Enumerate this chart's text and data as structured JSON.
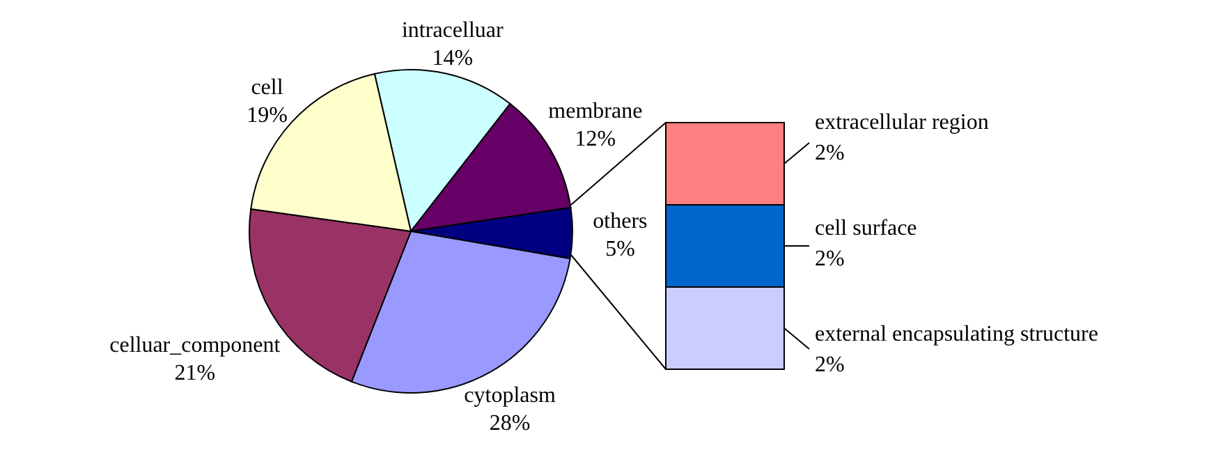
{
  "chart_data": [
    {
      "type": "pie",
      "categories": [
        "intracelluar",
        "membrane",
        "others",
        "cytoplasm",
        "celluar_component",
        "cell"
      ],
      "values": [
        14,
        12,
        5,
        28,
        21,
        19
      ],
      "value_labels": [
        "14%",
        "12%",
        "5%",
        "28%",
        "21%",
        "19%"
      ],
      "colors": [
        "#ccffff",
        "#660066",
        "#000080",
        "#9999ff",
        "#993366",
        "#ffffcc"
      ]
    },
    {
      "type": "bar",
      "stacked": true,
      "categories": [
        null
      ],
      "series": [
        {
          "name": "external encapsulating structure",
          "color": "#ccccff",
          "values": [
            2
          ],
          "value_labels": [
            "2%"
          ]
        },
        {
          "name": "cell surface",
          "color": "#0066cc",
          "values": [
            2
          ],
          "value_labels": [
            "2%"
          ]
        },
        {
          "name": "extracellular region",
          "color": "#ff8080",
          "values": [
            2
          ],
          "value_labels": [
            "2%"
          ]
        }
      ]
    }
  ]
}
